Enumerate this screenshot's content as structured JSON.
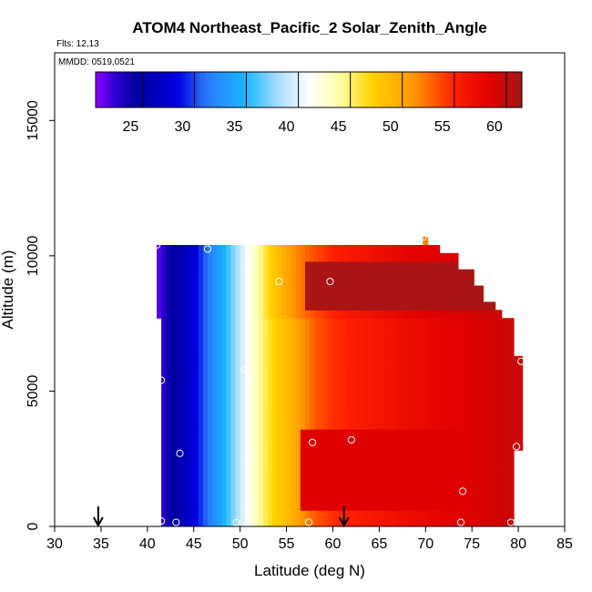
{
  "header": {
    "title": "ATOM4 Northeast_Pacific_2 Solar_Zenith_Angle",
    "flights_label": "Flts: 12,13",
    "dates_label": "MMDD: 0519,0521"
  },
  "chart_data": {
    "type": "heatmap",
    "title": "ATOM4 Northeast_Pacific_2 Solar_Zenith_Angle",
    "xlabel": "Latitude (deg N)",
    "ylabel": "Altitude (m)",
    "xlim": [
      30,
      85
    ],
    "ylim": [
      0,
      17500
    ],
    "x_ticks": [
      30,
      35,
      40,
      45,
      50,
      55,
      60,
      65,
      70,
      75,
      80,
      85
    ],
    "y_ticks": [
      0,
      5000,
      10000,
      15000
    ],
    "colorbar": {
      "range": [
        20.5,
        61.5
      ],
      "ticks": [
        25,
        30,
        35,
        40,
        45,
        50,
        55,
        60
      ],
      "stops": [
        [
          20.5,
          "#8a00ff"
        ],
        [
          22.5,
          "#2a00d0"
        ],
        [
          24.5,
          "#00009e"
        ],
        [
          28.5,
          "#0000e0"
        ],
        [
          31,
          "#2a78ff"
        ],
        [
          35,
          "#18b8ff"
        ],
        [
          38,
          "#a8dcff"
        ],
        [
          41,
          "#ffffff"
        ],
        [
          44,
          "#ffffa8"
        ],
        [
          47,
          "#ffd400"
        ],
        [
          51,
          "#ff9a00"
        ],
        [
          55,
          "#ff2000"
        ],
        [
          58.5,
          "#e00000"
        ],
        [
          61.5,
          "#a01818"
        ]
      ]
    },
    "grid": false,
    "upper_block": {
      "alt_bottom": 7700,
      "alt_top": 10400,
      "lat_start": 41.0,
      "lat_end_by_alt": [
        [
          10400,
          71.5
        ],
        [
          9800,
          73.5
        ],
        [
          9200,
          75.2
        ],
        [
          8600,
          76.2
        ],
        [
          8100,
          77.5
        ],
        [
          7700,
          78.2
        ]
      ],
      "values": [
        [
          41.0,
          21
        ],
        [
          41.5,
          22
        ],
        [
          42.0,
          23.5
        ],
        [
          43.0,
          25
        ],
        [
          44.0,
          26.5
        ],
        [
          45.0,
          28
        ],
        [
          46.0,
          30
        ],
        [
          47.0,
          32
        ],
        [
          48.0,
          34
        ],
        [
          49.0,
          36.5
        ],
        [
          50.0,
          39
        ],
        [
          51.0,
          41.5
        ],
        [
          52.0,
          44
        ],
        [
          53.0,
          46.5
        ],
        [
          54.0,
          48.5
        ],
        [
          55.0,
          50
        ],
        [
          56.0,
          51.5
        ],
        [
          57.0,
          52.5
        ],
        [
          58.0,
          53.5
        ],
        [
          60.0,
          55
        ],
        [
          62.0,
          56
        ],
        [
          65.0,
          57
        ],
        [
          68.0,
          58
        ],
        [
          71.0,
          58.5
        ],
        [
          74.0,
          59
        ],
        [
          78.2,
          59.5
        ]
      ],
      "dark_band": {
        "alt_bottom": 8000,
        "alt_top": 9600,
        "lat_start": 57.0,
        "value": 61
      }
    },
    "lower_block": {
      "alt_bottom": 0,
      "alt_top": 7700,
      "lat_start": 41.5,
      "lat_end": 79.5,
      "values": [
        [
          41.5,
          22
        ],
        [
          42.0,
          23.5
        ],
        [
          43.0,
          25
        ],
        [
          44.0,
          26.5
        ],
        [
          45.0,
          28
        ],
        [
          46.0,
          30
        ],
        [
          47.0,
          32
        ],
        [
          48.0,
          34
        ],
        [
          49.0,
          36.5
        ],
        [
          50.0,
          39
        ],
        [
          51.0,
          41.5
        ],
        [
          52.0,
          44
        ],
        [
          53.0,
          46
        ],
        [
          54.0,
          47.5
        ],
        [
          55.0,
          48.5
        ],
        [
          56.0,
          50
        ],
        [
          57.0,
          51.5
        ],
        [
          58.0,
          53
        ],
        [
          60.0,
          54.5
        ],
        [
          63.0,
          55.5
        ],
        [
          66.0,
          56.5
        ],
        [
          70.0,
          57.5
        ],
        [
          74.0,
          58.5
        ],
        [
          79.5,
          59.5
        ]
      ],
      "dark_band": {
        "alt_bottom": 400,
        "alt_top": 3400,
        "lat_start": 56.5,
        "value": 58.5
      }
    },
    "right_extension": {
      "alt_bottom": 2800,
      "alt_top": 6300,
      "lat_start": 79.5,
      "lat_end": 80.5,
      "value": 59.5
    },
    "top_tick": {
      "lat": 70.0,
      "alt_bottom": 10400,
      "alt_top": 10700,
      "value": 52
    },
    "markers": [
      [
        41.0,
        10400
      ],
      [
        46.5,
        10250
      ],
      [
        54.2,
        9050
      ],
      [
        59.7,
        9050
      ],
      [
        69.8,
        10700
      ],
      [
        76.8,
        8850
      ],
      [
        80.3,
        6100
      ],
      [
        41.5,
        5400
      ],
      [
        50.5,
        5800
      ],
      [
        43.5,
        2700
      ],
      [
        57.8,
        3100
      ],
      [
        62.0,
        3200
      ],
      [
        79.8,
        2950
      ],
      [
        74.0,
        1300
      ],
      [
        41.5,
        200
      ],
      [
        43.1,
        150
      ],
      [
        49.6,
        150
      ],
      [
        57.4,
        150
      ],
      [
        73.8,
        150
      ],
      [
        79.2,
        150
      ]
    ],
    "arrows": [
      34.7,
      61.2
    ]
  }
}
